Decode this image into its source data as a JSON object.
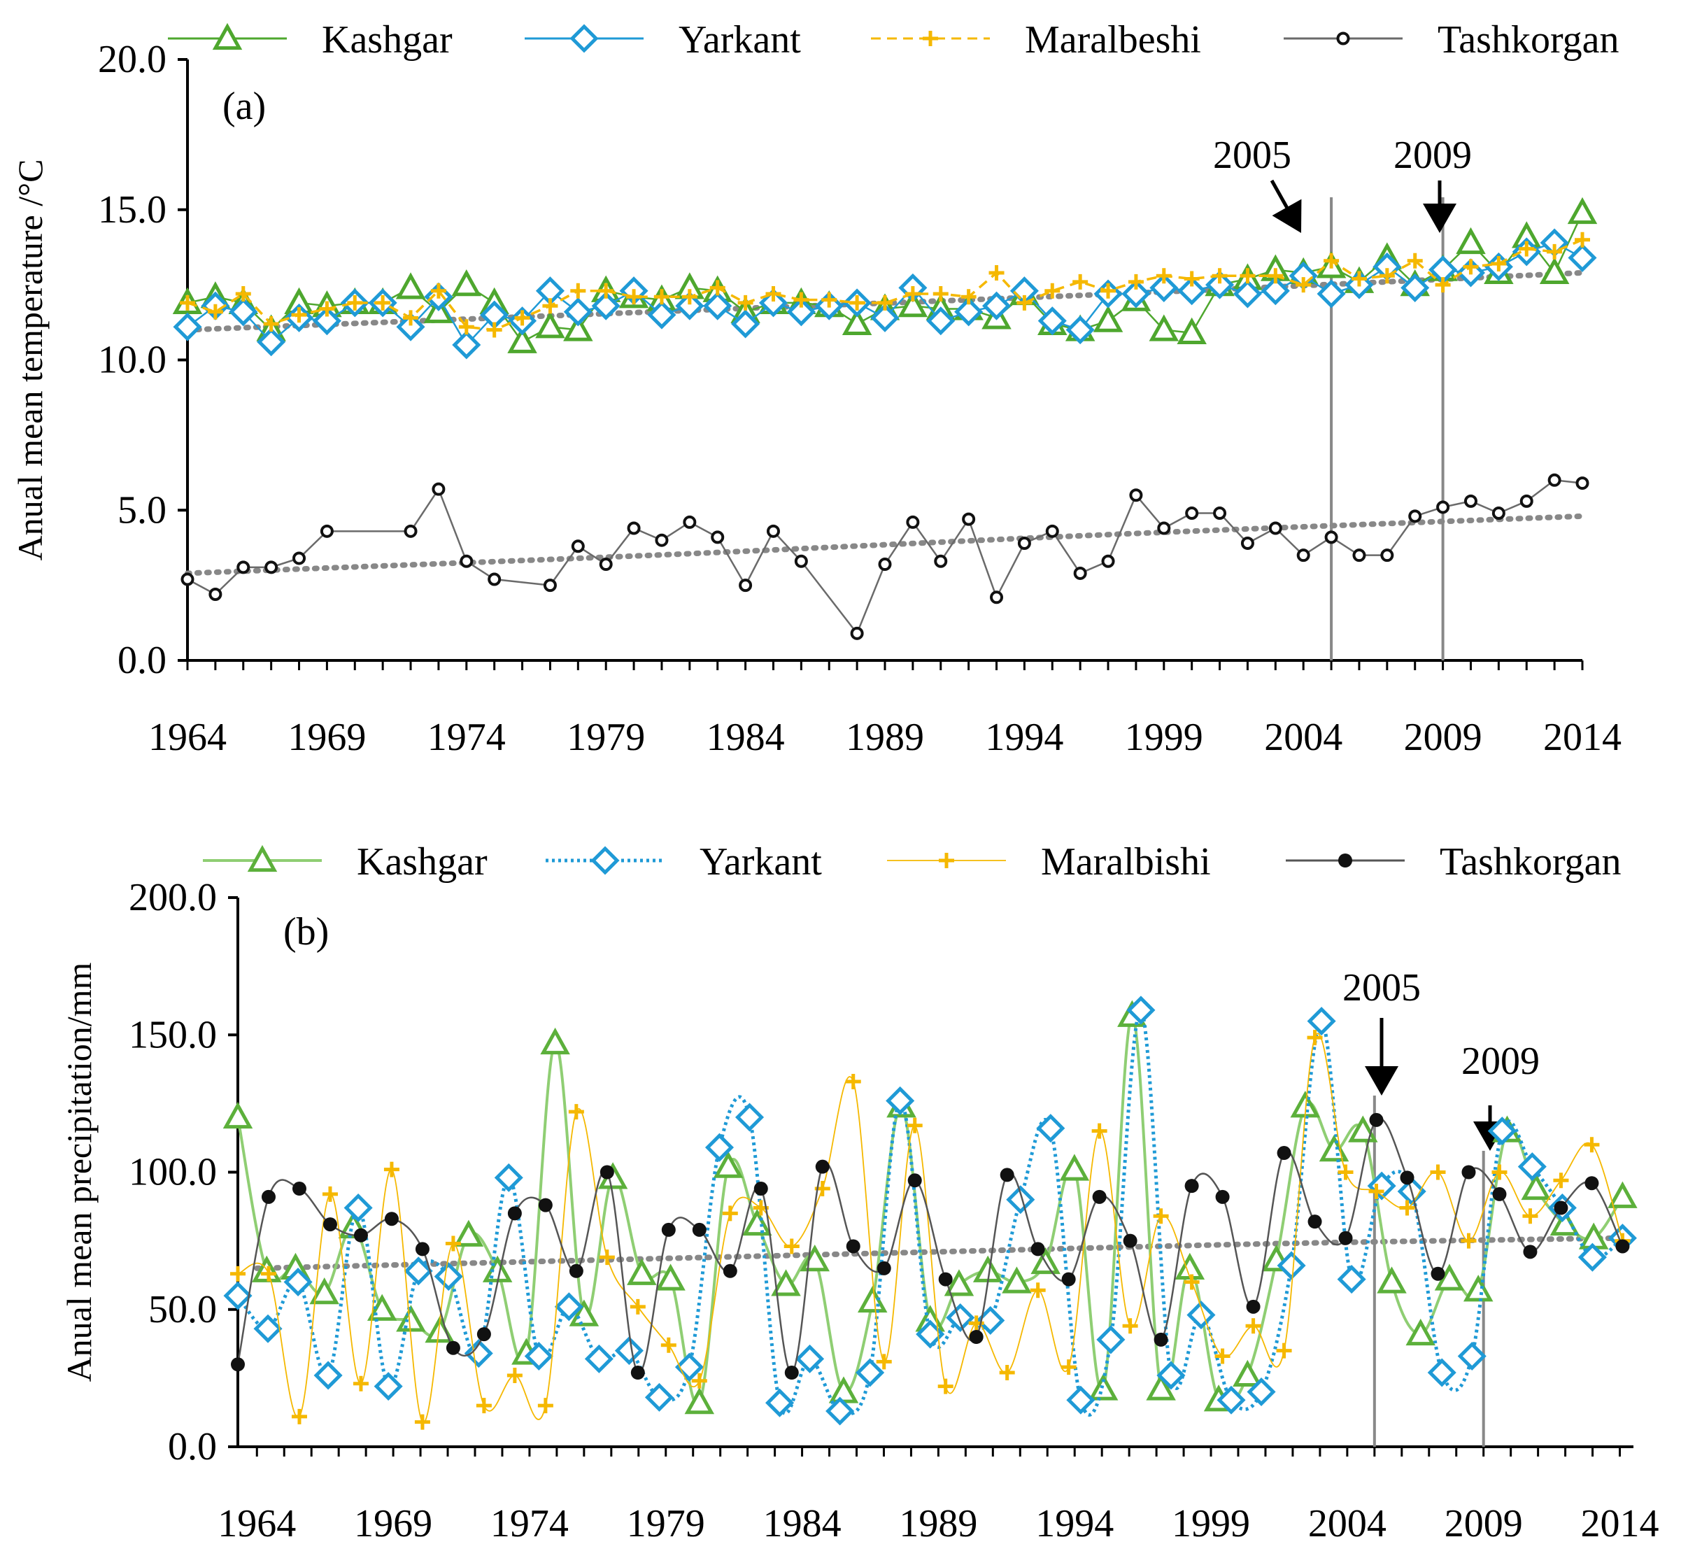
{
  "chart_data": [
    {
      "id": "a",
      "type": "line",
      "panel_label": "(a)",
      "ylabel": "Anual mean temperature /°C",
      "xlabel": "",
      "xlim": [
        1964,
        2014
      ],
      "ylim": [
        0,
        20
      ],
      "x_ticks": [
        "1964",
        "1969",
        "1974",
        "1979",
        "1984",
        "1989",
        "1994",
        "1999",
        "2004",
        "2009",
        "2014"
      ],
      "y_ticks": [
        "0.0",
        "5.0",
        "10.0",
        "15.0",
        "20.0"
      ],
      "legend_position": "top",
      "annotations": [
        {
          "text": "2005",
          "year": 2005
        },
        {
          "text": "2009",
          "year": 2009
        }
      ],
      "trends": {
        "upper": [
          11.0,
          11.6,
          12.2,
          12.9
        ],
        "lower": [
          2.9,
          3.5,
          4.2,
          4.8
        ]
      },
      "series": [
        {
          "name": "Kashgar",
          "color": "#4ea72e",
          "marker": "triangle-icon",
          "style": "solid",
          "values": [
            11.9,
            12.1,
            11.9,
            11.0,
            11.9,
            11.8,
            11.9,
            11.9,
            12.4,
            11.6,
            12.5,
            11.9,
            10.6,
            11.1,
            11.0,
            12.3,
            12.1,
            12.0,
            12.4,
            12.3,
            11.6,
            11.9,
            11.9,
            11.8,
            11.2,
            11.7,
            11.8,
            11.7,
            11.7,
            11.4,
            12.2,
            11.2,
            11.0,
            11.3,
            12.0,
            11.0,
            10.9,
            12.5,
            12.7,
            13.0,
            12.9,
            13.1,
            12.6,
            13.4,
            12.5,
            13.0,
            13.9,
            12.9,
            14.1,
            12.9,
            14.9
          ]
        },
        {
          "name": "Yarkant",
          "color": "#1f9ad6",
          "marker": "diamond-icon",
          "style": "solid",
          "values": [
            11.1,
            11.8,
            11.6,
            10.6,
            11.4,
            11.3,
            11.9,
            11.9,
            11.1,
            12.1,
            10.5,
            11.5,
            11.3,
            12.3,
            11.6,
            11.8,
            12.3,
            11.5,
            11.8,
            11.8,
            11.2,
            11.9,
            11.6,
            11.8,
            11.9,
            11.4,
            12.4,
            11.3,
            11.6,
            11.8,
            12.3,
            11.3,
            11.0,
            12.2,
            12.2,
            12.4,
            12.3,
            12.5,
            12.2,
            12.3,
            12.8,
            12.2,
            12.5,
            13.1,
            12.4,
            13.0,
            12.9,
            13.1,
            13.6,
            13.9,
            13.4
          ]
        },
        {
          "name": "Maralbeshi",
          "color": "#f5b800",
          "marker": "plus-icon",
          "style": "dashed",
          "values": [
            11.9,
            11.6,
            12.2,
            11.2,
            11.5,
            11.7,
            11.9,
            11.9,
            11.4,
            12.3,
            11.1,
            11.0,
            11.4,
            11.8,
            12.3,
            12.3,
            12.1,
            12.1,
            12.1,
            12.4,
            11.9,
            12.2,
            12.0,
            12.0,
            11.9,
            11.9,
            12.2,
            12.2,
            12.1,
            12.9,
            11.9,
            12.3,
            12.6,
            12.3,
            12.6,
            12.8,
            12.7,
            12.8,
            12.8,
            12.8,
            12.5,
            13.3,
            12.7,
            12.8,
            13.3,
            12.5,
            13.1,
            13.2,
            13.7,
            13.6,
            14.0
          ]
        },
        {
          "name": "Tashkorgan",
          "color": "#6a6a6a",
          "marker": "open-circle-icon",
          "style": "solid",
          "values": [
            2.7,
            2.2,
            3.1,
            3.1,
            3.4,
            4.3,
            null,
            null,
            4.3,
            5.7,
            3.3,
            2.7,
            null,
            2.5,
            3.8,
            3.2,
            4.4,
            4.0,
            4.6,
            4.1,
            2.5,
            4.3,
            3.3,
            null,
            0.9,
            3.2,
            4.6,
            3.3,
            4.7,
            2.1,
            3.9,
            4.3,
            2.9,
            3.3,
            5.5,
            4.4,
            4.9,
            4.9,
            3.9,
            4.4,
            3.5,
            4.1,
            3.5,
            3.5,
            4.8,
            5.1,
            5.3,
            4.9,
            5.3,
            6.0,
            5.9
          ]
        }
      ]
    },
    {
      "id": "b",
      "type": "line",
      "panel_label": "(b)",
      "ylabel": "Anual mean precipitation/mm",
      "xlabel": "",
      "xlim": [
        1964,
        2014
      ],
      "ylim": [
        0,
        200
      ],
      "x_ticks": [
        "1964",
        "1969",
        "1974",
        "1979",
        "1984",
        "1989",
        "1994",
        "1999",
        "2004",
        "2009",
        "2014"
      ],
      "y_ticks": [
        "0.0",
        "50.0",
        "100.0",
        "150.0",
        "200.0"
      ],
      "legend_position": "top",
      "annotations": [
        {
          "text": "2005",
          "year": 2005
        },
        {
          "text": "2009",
          "year": 2009
        }
      ],
      "trends": {
        "all": [
          65,
          68,
          71,
          74,
          76
        ]
      },
      "series": [
        {
          "name": "Kashgar",
          "color": "#5cb03b",
          "marker": "triangle-icon",
          "style": "smooth",
          "values": [
            120,
            64,
            65,
            56,
            80,
            50,
            46,
            42,
            77,
            64,
            34,
            147,
            48,
            98,
            63,
            61,
            16,
            102,
            81,
            59,
            68,
            20,
            53,
            124,
            46,
            59,
            64,
            60,
            67,
            101,
            21,
            157,
            21,
            65,
            17,
            26,
            68,
            124,
            108,
            115,
            60,
            41,
            61,
            57,
            115,
            94,
            81,
            76,
            91
          ]
        },
        {
          "name": "Yarkant",
          "color": "#1f9ad6",
          "marker": "diamond-icon",
          "style": "dotted",
          "values": [
            55,
            43,
            60,
            26,
            87,
            22,
            64,
            62,
            34,
            98,
            33,
            51,
            32,
            35,
            18,
            29,
            109,
            120,
            16,
            32,
            13,
            27,
            126,
            41,
            47,
            46,
            90,
            116,
            17,
            39,
            159,
            26,
            48,
            17,
            20,
            66,
            155,
            61,
            95,
            93,
            27,
            33,
            115,
            102,
            87,
            69,
            76
          ]
        },
        {
          "name": "Maralbishi",
          "color": "#f5b800",
          "marker": "plus-icon",
          "style": "thin",
          "values": [
            63,
            63,
            11,
            92,
            23,
            101,
            9,
            74,
            15,
            26,
            15,
            122,
            69,
            51,
            37,
            24,
            85,
            87,
            73,
            94,
            133,
            31,
            117,
            22,
            45,
            27,
            57,
            29,
            115,
            44,
            84,
            60,
            33,
            44,
            35,
            149,
            100,
            93,
            87,
            100,
            75,
            100,
            84,
            97,
            110,
            75
          ]
        },
        {
          "name": "Tashkorgan",
          "color": "#555555",
          "marker": "filled-circle-icon",
          "style": "solid",
          "values": [
            30,
            91,
            94,
            81,
            77,
            83,
            72,
            36,
            41,
            85,
            88,
            64,
            100,
            27,
            79,
            79,
            64,
            94,
            27,
            102,
            73,
            65,
            97,
            61,
            40,
            99,
            72,
            61,
            91,
            75,
            39,
            95,
            91,
            51,
            107,
            82,
            76,
            119,
            98,
            63,
            100,
            92,
            71,
            87,
            96,
            73
          ]
        }
      ]
    }
  ]
}
